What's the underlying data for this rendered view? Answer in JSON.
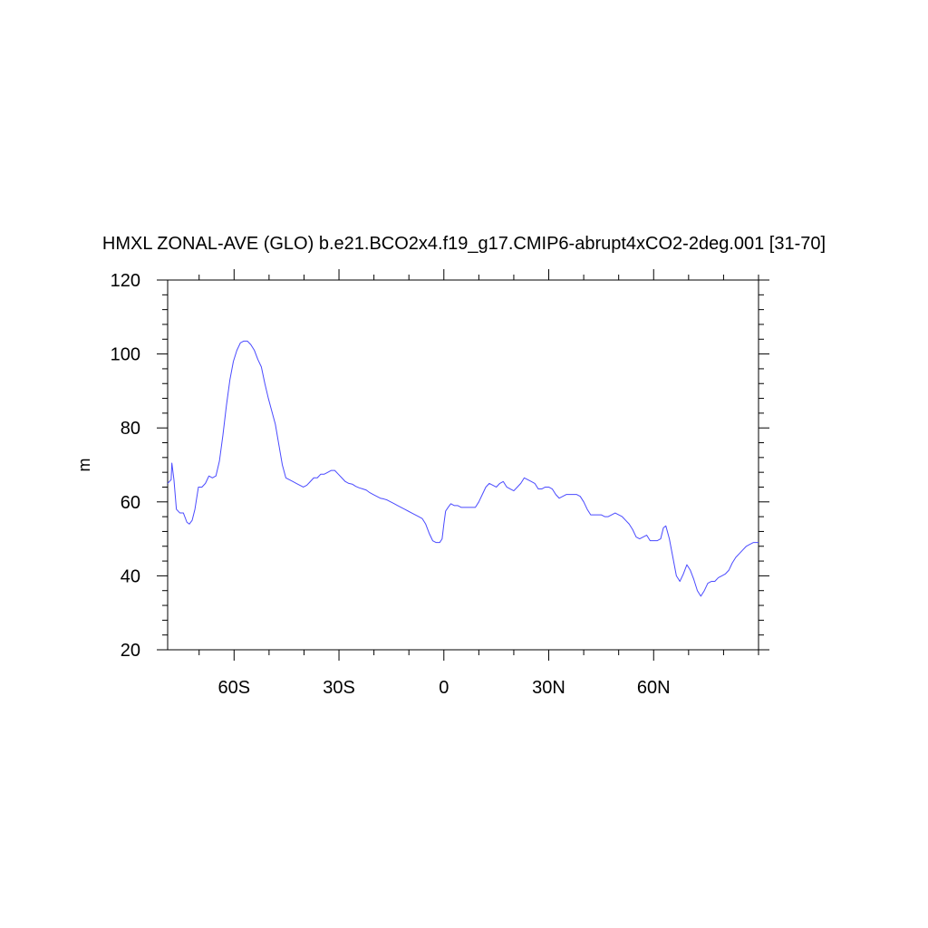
{
  "chart_data": {
    "type": "line",
    "title": "HMXL ZONAL-AVE (GLO) b.e21.BCO2x4.f19_g17.CMIP6-abrupt4xCO2-2deg.001 [31-70]",
    "xlabel": "",
    "ylabel": "m",
    "xlim": [
      -79,
      90
    ],
    "ylim": [
      20,
      120
    ],
    "x_ticks": [
      {
        "value": -60,
        "label": "60S"
      },
      {
        "value": -30,
        "label": "30S"
      },
      {
        "value": 0,
        "label": "0"
      },
      {
        "value": 30,
        "label": "30N"
      },
      {
        "value": 60,
        "label": "60N"
      }
    ],
    "y_ticks": [
      {
        "value": 20,
        "label": "20"
      },
      {
        "value": 40,
        "label": "40"
      },
      {
        "value": 60,
        "label": "60"
      },
      {
        "value": 80,
        "label": "80"
      },
      {
        "value": 100,
        "label": "100"
      },
      {
        "value": 120,
        "label": "120"
      }
    ],
    "grid": false,
    "line_color": "#4a4aff",
    "series": [
      {
        "x": [
          -79,
          -78,
          -77.8,
          -77.2,
          -76.5,
          -75.5,
          -74.5,
          -73.5,
          -72.8,
          -72,
          -71.2,
          -70.2,
          -69.2,
          -68.2,
          -67.2,
          -66.2,
          -65.2,
          -64.2,
          -63.2,
          -62.2,
          -61.2,
          -60.2,
          -59.2,
          -58.2,
          -57.2,
          -56.2,
          -55.2,
          -54.2,
          -53.2,
          -52.2,
          -51.2,
          -50.2,
          -49.2,
          -48.2,
          -47.2,
          -46.2,
          -45.2,
          -44.2,
          -43.2,
          -42.2,
          -41.2,
          -40.2,
          -39.2,
          -38.2,
          -37.2,
          -36.2,
          -35.2,
          -34.2,
          -33.2,
          -32.2,
          -31.2,
          -30.2,
          -29.2,
          -28.2,
          -27.2,
          -26.2,
          -25.2,
          -24.2,
          -23.2,
          -22.2,
          -21.2,
          -20.2,
          -19.2,
          -18.2,
          -17.2,
          -16.2,
          -15.2,
          -14.2,
          -13.2,
          -12.2,
          -11.2,
          -10.2,
          -9.2,
          -8.2,
          -7.2,
          -6.2,
          -5.2,
          -4.2,
          -3.2,
          -2.2,
          -1.2,
          -0.5,
          0,
          0.5,
          1.2,
          2,
          3,
          4,
          5,
          6,
          7,
          8,
          9,
          10,
          11,
          12,
          13,
          14,
          15,
          16,
          17,
          18,
          19,
          20,
          21,
          22,
          23,
          24,
          25,
          26,
          27,
          28,
          29,
          30,
          31,
          32,
          33,
          34,
          35,
          36,
          37,
          38,
          39,
          40,
          41,
          42,
          43,
          44,
          45,
          46,
          47,
          48,
          49,
          50,
          51,
          52,
          53,
          54,
          55,
          56,
          57,
          58,
          59,
          60,
          61,
          62,
          62.8,
          63.5,
          64.5,
          65.5,
          66.5,
          67.5,
          68.5,
          69.5,
          70.5,
          71.5,
          72.5,
          73.5,
          74.5,
          75.5,
          76.5,
          77.5,
          78.5,
          79.5,
          80.5,
          81.5,
          82.5,
          83.5,
          84.5,
          85.5,
          86.5,
          87.5,
          88.5,
          89.5,
          90
        ],
        "y": [
          65,
          66,
          70.5,
          66,
          58,
          57,
          57,
          54.5,
          54,
          55,
          58,
          64,
          64,
          65,
          67,
          66.5,
          67,
          71,
          78,
          86,
          93,
          98,
          101,
          103,
          103.5,
          103.5,
          102.5,
          101,
          98.5,
          96.5,
          92,
          88,
          84.5,
          81,
          75.5,
          70,
          66.5,
          66,
          65.5,
          65,
          64.5,
          64,
          64.5,
          65.5,
          66.5,
          66.5,
          67.5,
          67.5,
          68,
          68.5,
          68.5,
          67.5,
          66.5,
          65.5,
          65,
          64.8,
          64.2,
          63.8,
          63.5,
          63.2,
          62.5,
          62,
          61.5,
          61,
          60.8,
          60.5,
          60,
          59.5,
          59,
          58.5,
          58,
          57.5,
          57,
          56.5,
          56,
          55.5,
          54,
          51.5,
          49.5,
          49,
          49,
          50,
          54,
          57.5,
          58.5,
          59.5,
          59,
          59,
          58.5,
          58.5,
          58.5,
          58.5,
          58.5,
          60,
          62,
          64,
          65,
          64.5,
          64,
          65,
          65.5,
          64,
          63.5,
          63,
          64,
          65,
          66.5,
          66,
          65.5,
          65,
          63.5,
          63.5,
          64,
          64,
          63.5,
          62,
          61,
          61.5,
          62,
          62,
          62,
          62,
          61.5,
          60,
          58,
          56.5,
          56.5,
          56.5,
          56.5,
          56,
          56,
          56.5,
          57,
          56.5,
          56,
          55,
          54,
          52.5,
          50.5,
          50,
          50.5,
          51,
          49.5,
          49.5,
          49.5,
          50,
          53,
          53.5,
          50,
          45,
          40,
          38.5,
          40.5,
          43,
          41.5,
          39,
          36,
          34.5,
          36,
          38,
          38.5,
          38.5,
          39.5,
          40,
          40.5,
          41.5,
          43.5,
          45,
          46,
          47,
          48,
          48.5,
          49,
          49,
          49
        ]
      }
    ]
  }
}
